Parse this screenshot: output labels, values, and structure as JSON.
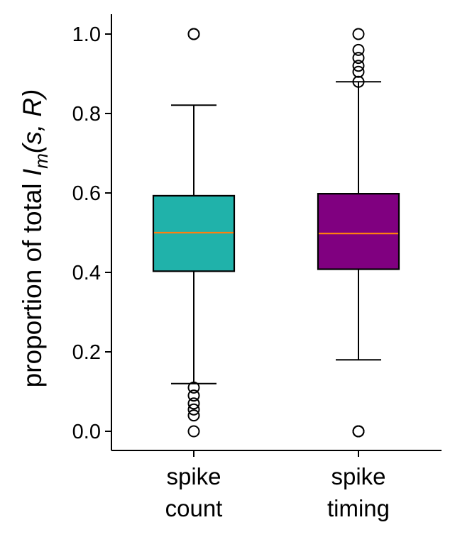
{
  "chart_data": {
    "type": "box",
    "categories": [
      {
        "line1": "spike",
        "line2": "count"
      },
      {
        "line1": "spike",
        "line2": "timing"
      }
    ],
    "ylabel": {
      "prefix": "proportion of total ",
      "symbol": "I",
      "subscript": "m",
      "args": "(s, R)"
    },
    "ylim": [
      -0.05,
      1.05
    ],
    "yticks": [
      0.0,
      0.2,
      0.4,
      0.6,
      0.8,
      1.0
    ],
    "ytick_labels": [
      "0.0",
      "0.2",
      "0.4",
      "0.6",
      "0.8",
      "1.0"
    ],
    "median_color": "#ff7f0e",
    "boxes": [
      {
        "q1": 0.403,
        "median": 0.5,
        "q3": 0.593,
        "whisker_low": 0.12,
        "whisker_high": 0.821,
        "color": "#20b2aa",
        "outliers": [
          0.0,
          0.04,
          0.055,
          0.07,
          0.09,
          0.11,
          1.0,
          1.0
        ]
      },
      {
        "q1": 0.408,
        "median": 0.498,
        "q3": 0.598,
        "whisker_low": 0.18,
        "whisker_high": 0.88,
        "color": "#800080",
        "outliers": [
          0.0,
          0.0,
          0.0,
          0.88,
          0.905,
          0.92,
          0.94,
          0.96,
          1.0
        ]
      }
    ]
  }
}
